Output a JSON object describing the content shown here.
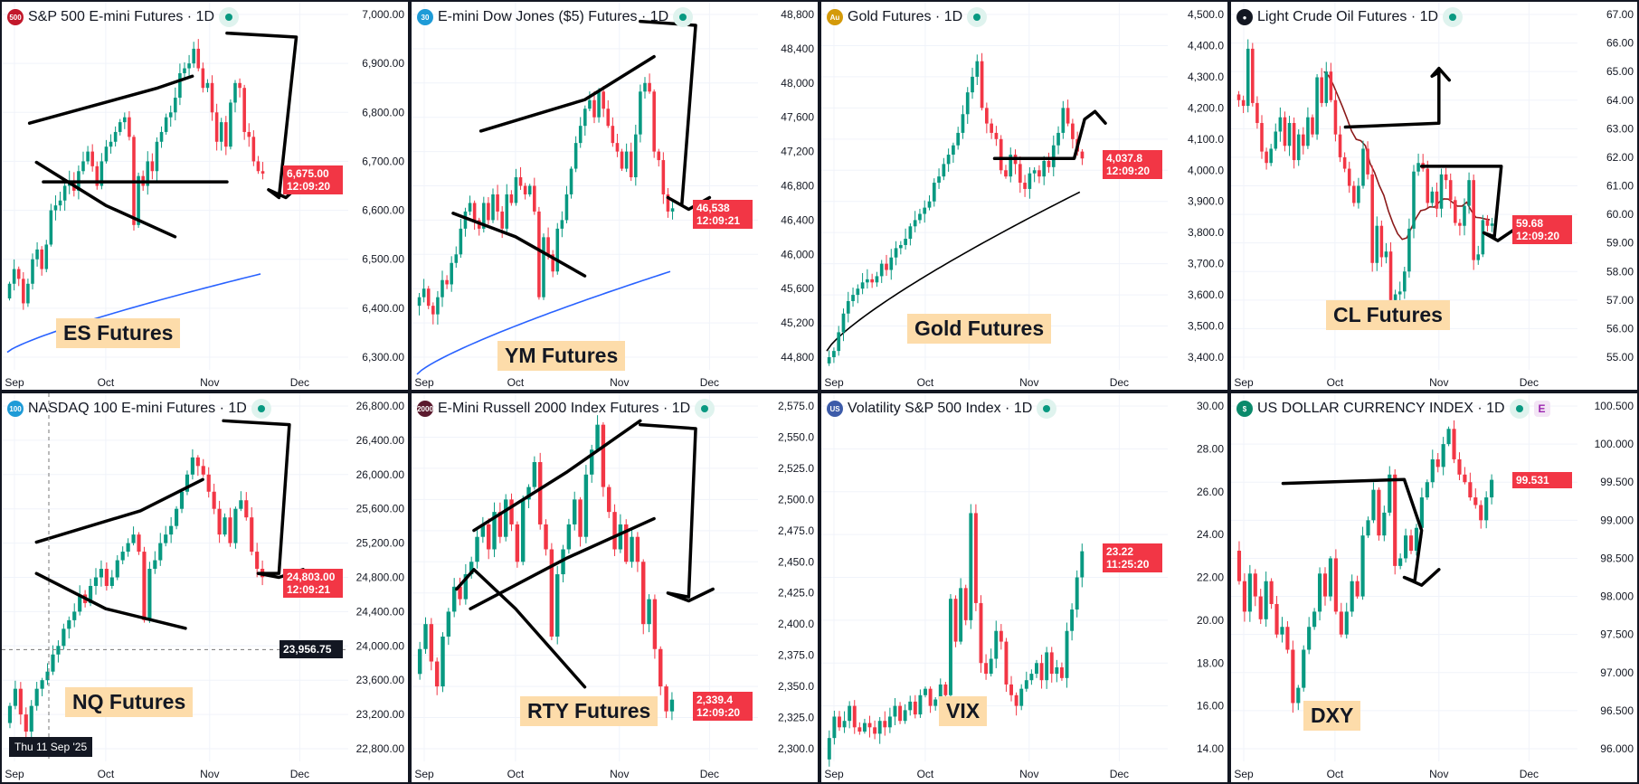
{
  "colors": {
    "up": "#089981",
    "down": "#f23645",
    "grid": "#f0f3fa",
    "price_label": "#f23645",
    "annotation": "#000000"
  },
  "x_labels": [
    "Sep",
    "Oct",
    "Nov",
    "Dec"
  ],
  "charts": [
    {
      "title": "S&P 500 E-mini Futures · 1D",
      "icon_text": "500",
      "icon_color": "#c2182b",
      "note": "ES Futures",
      "price": "6,675.00",
      "timer": "12:09:20",
      "ticks": [
        "7,000.00",
        "6,900.00",
        "6,800.00",
        "6,700.00",
        "6,600.00",
        "6,500.00",
        "6,400.00",
        "6,300.00"
      ],
      "chart_data": {
        "type": "candlestick",
        "ylim": [
          6300,
          7000
        ],
        "close": [
          6450,
          6480,
          6460,
          6410,
          6450,
          6500,
          6520,
          6480,
          6530,
          6600,
          6610,
          6620,
          6650,
          6660,
          6640,
          6680,
          6700,
          6720,
          6690,
          6650,
          6700,
          6730,
          6740,
          6760,
          6780,
          6790,
          6750,
          6570,
          6670,
          6650,
          6700,
          6680,
          6740,
          6760,
          6790,
          6800,
          6830,
          6880,
          6890,
          6900,
          6930,
          6890,
          6850,
          6860,
          6800,
          6740,
          6780,
          6730,
          6820,
          6860,
          6850,
          6760,
          6750,
          6700,
          6680,
          6675
        ],
        "ma": {
          "color": "#2962ff",
          "from": 6310,
          "to": 6470
        }
      }
    },
    {
      "title": "E-mini Dow Jones ($5) Futures · 1D",
      "icon_text": "30",
      "icon_color": "#1e9bd7",
      "note": "YM Futures",
      "price": "46,538",
      "timer": "12:09:21",
      "ticks": [
        "48,800",
        "48,400",
        "48,000",
        "47,600",
        "47,200",
        "46,800",
        "46,400",
        "46,000",
        "45,600",
        "45,200",
        "44,800"
      ],
      "chart_data": {
        "type": "candlestick",
        "ylim": [
          44800,
          48800
        ],
        "close": [
          45500,
          45600,
          45400,
          45300,
          45500,
          45700,
          45650,
          45900,
          46000,
          46300,
          46500,
          46600,
          46400,
          46300,
          46600,
          46400,
          46700,
          46500,
          46300,
          46700,
          46600,
          46900,
          46800,
          46700,
          46800,
          46500,
          45500,
          46200,
          46000,
          45800,
          46300,
          46400,
          46700,
          47000,
          47300,
          47500,
          47700,
          47800,
          47600,
          47900,
          47700,
          47500,
          47300,
          47200,
          47000,
          47200,
          46900,
          47400,
          47900,
          48000,
          47900,
          47200,
          47100,
          46700,
          46500,
          46538
        ],
        "ma": {
          "color": "#2962ff",
          "from": 44600,
          "to": 45800
        }
      }
    },
    {
      "title": "Gold Futures · 1D",
      "icon_text": "Au",
      "icon_color": "#d49a0a",
      "note": "Gold Futures",
      "price": "4,037.8",
      "timer": "12:09:20",
      "ticks": [
        "4,500.0",
        "4,400.0",
        "4,300.0",
        "4,200.0",
        "4,100.0",
        "4,000.0",
        "3,900.0",
        "3,800.0",
        "3,700.0",
        "3,600.0",
        "3,500.0",
        "3,400.0"
      ],
      "chart_data": {
        "type": "candlestick",
        "ylim": [
          3400,
          4500
        ],
        "close": [
          3400,
          3420,
          3480,
          3540,
          3580,
          3600,
          3620,
          3640,
          3650,
          3640,
          3660,
          3700,
          3680,
          3720,
          3750,
          3760,
          3780,
          3820,
          3840,
          3860,
          3880,
          3900,
          3960,
          3980,
          4020,
          4050,
          4080,
          4120,
          4180,
          4250,
          4300,
          4350,
          4200,
          4150,
          4120,
          4100,
          4000,
          3980,
          4050,
          4020,
          3960,
          3940,
          3990,
          4000,
          3980,
          4030,
          4010,
          4080,
          4120,
          4200,
          4150,
          4100,
          4060,
          4037.8
        ],
        "ma": {
          "color": "#000000",
          "from": 3420,
          "to": 3930
        }
      }
    },
    {
      "title": "Light Crude Oil Futures · 1D",
      "icon_text": "●",
      "icon_color": "#131722",
      "note": "CL Futures",
      "price": "59.68",
      "timer": "12:09:20",
      "ticks": [
        "67.00",
        "66.00",
        "65.00",
        "64.00",
        "63.00",
        "62.00",
        "61.00",
        "60.00",
        "59.00",
        "58.00",
        "57.00",
        "56.00",
        "55.00"
      ],
      "chart_data": {
        "type": "candlestick",
        "ylim": [
          55,
          67
        ],
        "close": [
          64,
          63.8,
          65.8,
          63.9,
          63.2,
          62.2,
          61.8,
          62.3,
          62.9,
          63.4,
          62.4,
          63.2,
          61.9,
          62.8,
          62.4,
          63.4,
          62.8,
          64.8,
          63.9,
          65.0,
          64.0,
          62.8,
          62.0,
          61.6,
          61.0,
          60.4,
          61.0,
          62.3,
          61.4,
          58.3,
          59.6,
          58.5,
          58.7,
          57.0,
          57.2,
          57.3,
          58.0,
          59.5,
          61.5,
          61.8,
          61.6,
          60.4,
          60.8,
          60.2,
          61.4,
          61.2,
          60.5,
          59.7,
          59.6,
          60.3,
          61.2,
          58.4,
          58.6,
          59.8,
          59.6,
          59.68
        ]
      }
    },
    {
      "title": "NASDAQ 100 E-mini Futures · 1D",
      "icon_text": "100",
      "icon_color": "#1e9bd7",
      "note": "NQ Futures",
      "price": "24,803.00",
      "timer": "12:09:21",
      "crosshair_price": "23,956.75",
      "crosshair_date": "Thu 11 Sep '25",
      "ticks": [
        "26,800.00",
        "26,400.00",
        "26,000.00",
        "25,600.00",
        "25,200.00",
        "24,800.00",
        "24,400.00",
        "24,000.00",
        "23,600.00",
        "23,200.00",
        "22,800.00"
      ],
      "chart_data": {
        "type": "candlestick",
        "ylim": [
          22800,
          26800
        ],
        "close": [
          23300,
          23500,
          23200,
          23000,
          23300,
          23500,
          23600,
          23700,
          23900,
          24000,
          24200,
          24300,
          24400,
          24600,
          24500,
          24700,
          24800,
          24900,
          24700,
          24800,
          25000,
          25100,
          25200,
          25300,
          25100,
          24300,
          24900,
          25000,
          25200,
          25300,
          25400,
          25600,
          25800,
          26000,
          26200,
          26100,
          26000,
          25800,
          25600,
          25300,
          25500,
          25200,
          25600,
          25700,
          25500,
          25100,
          24900,
          24803
        ]
      }
    },
    {
      "title": "E-Mini Russell 2000 Index Futures · 1D",
      "icon_text": "2000",
      "icon_color": "#5b1a2e",
      "note": "RTY Futures",
      "price": "2,339.4",
      "timer": "12:09:20",
      "ticks": [
        "2,575.0",
        "2,550.0",
        "2,525.0",
        "2,500.0",
        "2,475.0",
        "2,450.0",
        "2,425.0",
        "2,400.0",
        "2,375.0",
        "2,350.0",
        "2,325.0",
        "2,300.0"
      ],
      "chart_data": {
        "type": "candlestick",
        "ylim": [
          2300,
          2575
        ],
        "close": [
          2380,
          2400,
          2370,
          2350,
          2390,
          2410,
          2430,
          2420,
          2440,
          2450,
          2470,
          2480,
          2460,
          2490,
          2470,
          2500,
          2480,
          2450,
          2500,
          2510,
          2530,
          2480,
          2460,
          2390,
          2440,
          2460,
          2480,
          2500,
          2470,
          2520,
          2540,
          2560,
          2510,
          2490,
          2460,
          2480,
          2450,
          2470,
          2450,
          2400,
          2420,
          2380,
          2350,
          2330,
          2339.4
        ]
      }
    },
    {
      "title": "Volatility S&P 500 Index · 1D",
      "icon_text": "US",
      "icon_color": "#3c5ba9",
      "note": "VIX",
      "price": "23.22",
      "timer": "11:25:20",
      "ticks": [
        "30.00",
        "28.00",
        "26.00",
        "24.00",
        "22.00",
        "20.00",
        "18.00",
        "16.00",
        "14.00"
      ],
      "chart_data": {
        "type": "candlestick",
        "ylim": [
          14,
          30
        ],
        "close": [
          14.5,
          15.5,
          15,
          15.3,
          16,
          15,
          14.8,
          15.2,
          15.0,
          14.7,
          15.3,
          15.0,
          15.5,
          16.0,
          15.3,
          15.8,
          16.2,
          15.6,
          16.5,
          16.8,
          16.0,
          16.3,
          17.0,
          16.5,
          21.0,
          19.0,
          21.5,
          20.0,
          25.0,
          20.8,
          18.0,
          17.5,
          18.2,
          19.5,
          19.0,
          17.0,
          16.5,
          16.0,
          16.8,
          17.2,
          17.5,
          18.0,
          17.2,
          18.5,
          17.5,
          17.8,
          17.3,
          19.5,
          20.5,
          22.0,
          23.22
        ]
      }
    },
    {
      "title": "US DOLLAR CURRENCY INDEX · 1D",
      "icon_text": "$",
      "icon_color": "#0b8a6b",
      "badge": "E",
      "note": "DXY",
      "price": "99.531",
      "timer": "",
      "ticks": [
        "100.500",
        "100.000",
        "99.500",
        "99.000",
        "98.500",
        "98.000",
        "97.500",
        "97.000",
        "96.500",
        "96.000"
      ],
      "chart_data": {
        "type": "candlestick",
        "ylim": [
          96,
          100.5
        ],
        "close": [
          98.2,
          97.8,
          98.3,
          98.0,
          97.7,
          98.2,
          97.9,
          97.5,
          97.6,
          97.3,
          96.6,
          96.8,
          97.3,
          97.6,
          97.8,
          98.3,
          98.0,
          98.5,
          97.8,
          97.5,
          97.8,
          98.2,
          98.0,
          98.8,
          99.0,
          99.4,
          98.8,
          99.1,
          99.6,
          98.4,
          98.5,
          98.8,
          98.6,
          98.9,
          99.3,
          99.5,
          99.8,
          99.7,
          100.0,
          100.2,
          99.8,
          99.6,
          99.5,
          99.3,
          99.2,
          99.0,
          99.3,
          99.531
        ]
      }
    }
  ]
}
